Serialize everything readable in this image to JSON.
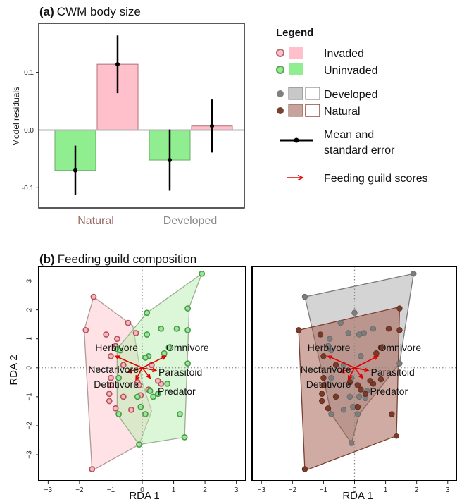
{
  "colors": {
    "invaded_fill": "#ffc0cb",
    "invaded_edge": "#b07070",
    "uninvaded_fill": "#90ee90",
    "uninvaded_edge": "#5aa05a",
    "developed_fill": "#a8a8a8",
    "developed_edge": "#777777",
    "natural_fill": "#a0604f",
    "natural_edge": "#7a4030",
    "natural_label": "#9e6b66",
    "developed_label": "#8a8a8a",
    "arrow": "#e00000"
  },
  "panel_a": {
    "label": "(a)",
    "title": "CWM body size",
    "ylabel": "Model residuals",
    "ylim": [
      -0.135,
      0.185
    ],
    "yticks": [
      {
        "value": -0.1,
        "label": "-0.1"
      },
      {
        "value": 0.0,
        "label": "0.0"
      },
      {
        "value": 0.1,
        "label": "0.1"
      }
    ],
    "groups": [
      "Natural",
      "Developed"
    ]
  },
  "legend": {
    "title": "Legend",
    "invaded": "Invaded",
    "uninvaded": "Uninvaded",
    "developed": "Developed",
    "natural": "Natural",
    "mean_line1": "Mean and",
    "mean_line2": "standard error",
    "feeding": "Feeding guild scores"
  },
  "panel_b": {
    "label": "(b)",
    "title": "Feeding guild composition",
    "xlabel": "RDA 1",
    "ylabel": "RDA 2",
    "xlim": [
      -3.3,
      3.3
    ],
    "ylim": [
      -3.9,
      3.5
    ],
    "xticks": [
      -3,
      -2,
      -1,
      0,
      1,
      2,
      3
    ],
    "yticks": [
      -3,
      -2,
      -1,
      0,
      1,
      2,
      3
    ],
    "guild_labels": {
      "herbivore": "Herbivore",
      "omnivore": "Omnivore",
      "nectarivore": "Nectarivore",
      "parasitoid": "Parasitoid",
      "detritivore": "Detritivore",
      "predator": "Predator"
    }
  },
  "chart_data": [
    {
      "type": "bar",
      "title": "CWM body size",
      "ylabel": "Model residuals",
      "ylim": [
        -0.135,
        0.185
      ],
      "categories": [
        "Natural",
        "Developed"
      ],
      "series": [
        {
          "name": "Uninvaded",
          "values": [
            -0.07,
            -0.052
          ],
          "error_low": [
            -0.113,
            -0.105
          ],
          "error_high": [
            -0.027,
            0.001
          ],
          "means": [
            -0.07,
            -0.052
          ]
        },
        {
          "name": "Invaded",
          "values": [
            0.114,
            0.007
          ],
          "error_low": [
            0.064,
            -0.039
          ],
          "error_high": [
            0.164,
            0.053
          ],
          "means": [
            0.114,
            0.007
          ]
        }
      ]
    },
    {
      "type": "scatter",
      "title": "Feeding guild composition",
      "subpanel": "invasion",
      "xlabel": "RDA 1",
      "ylabel": "RDA 2",
      "xlim": [
        -3.3,
        3.3
      ],
      "ylim": [
        -3.9,
        3.5
      ],
      "series": [
        {
          "name": "Invaded",
          "points": [
            [
              -1.6,
              -3.5
            ],
            [
              -1.8,
              1.3
            ],
            [
              -1.55,
              2.45
            ],
            [
              -1.15,
              1.15
            ],
            [
              -0.8,
              1.0
            ],
            [
              -0.85,
              0.75
            ],
            [
              -0.45,
              1.55
            ],
            [
              -0.2,
              1.2
            ],
            [
              -1.0,
              0.4
            ],
            [
              -0.6,
              0.1
            ],
            [
              -1.0,
              -0.35
            ],
            [
              -1.0,
              -0.6
            ],
            [
              -1.05,
              -0.9
            ],
            [
              -1.05,
              -1.15
            ],
            [
              -0.85,
              -1.4
            ],
            [
              -0.6,
              -1.0
            ],
            [
              -0.15,
              -0.5
            ],
            [
              -0.35,
              -1.45
            ],
            [
              -0.05,
              -0.95
            ],
            [
              0.2,
              -0.75
            ],
            [
              0.6,
              -0.55
            ],
            [
              0.5,
              -0.45
            ],
            [
              -0.1,
              -0.6
            ],
            [
              0.3,
              0.1
            ]
          ]
        },
        {
          "name": "Uninvaded",
          "points": [
            [
              1.9,
              3.25
            ],
            [
              1.45,
              2.05
            ],
            [
              1.45,
              1.3
            ],
            [
              1.1,
              1.35
            ],
            [
              0.6,
              1.35
            ],
            [
              0.15,
              1.9
            ],
            [
              0.15,
              1.15
            ],
            [
              0.85,
              0.7
            ],
            [
              0.7,
              0.5
            ],
            [
              0.2,
              0.4
            ],
            [
              0.1,
              0.35
            ],
            [
              -0.8,
              0.65
            ],
            [
              -0.75,
              -0.35
            ],
            [
              -0.7,
              0.6
            ],
            [
              1.45,
              0.15
            ],
            [
              0.25,
              -0.8
            ],
            [
              0.5,
              -0.9
            ],
            [
              0.35,
              -1.0
            ],
            [
              0.8,
              -0.55
            ],
            [
              -0.15,
              -1.0
            ],
            [
              -0.05,
              -1.35
            ],
            [
              0.1,
              -1.6
            ],
            [
              -0.75,
              -1.6
            ],
            [
              1.2,
              -1.6
            ],
            [
              -0.1,
              -2.65
            ],
            [
              1.35,
              -2.4
            ]
          ]
        }
      ],
      "hulls": {
        "Invaded": [
          [
            -1.55,
            2.45
          ],
          [
            -0.3,
            1.45
          ],
          [
            0.0,
            -0.5
          ],
          [
            0.3,
            -1.5
          ],
          [
            -0.1,
            -2.65
          ],
          [
            -1.6,
            -3.55
          ],
          [
            -1.85,
            1.3
          ]
        ],
        "Uninvaded": [
          [
            1.9,
            3.25
          ],
          [
            1.5,
            2.1
          ],
          [
            1.35,
            -2.4
          ],
          [
            -0.1,
            -2.65
          ],
          [
            -0.8,
            -1.6
          ],
          [
            -0.8,
            0.65
          ],
          [
            0.15,
            1.9
          ]
        ]
      },
      "arrows": [
        {
          "name": "Herbivore",
          "x": -0.85,
          "y": 0.4
        },
        {
          "name": "Omnivore",
          "x": 0.75,
          "y": 0.4
        },
        {
          "name": "Nectarivore",
          "x": -0.45,
          "y": -0.15
        },
        {
          "name": "Parasitoid",
          "x": 0.45,
          "y": -0.1
        },
        {
          "name": "Detritivore",
          "x": -0.2,
          "y": -0.4
        },
        {
          "name": "Predator",
          "x": 0.25,
          "y": -0.35
        }
      ]
    },
    {
      "type": "scatter",
      "title": "Feeding guild composition",
      "subpanel": "development",
      "xlabel": "RDA 1",
      "xlim": [
        -3.3,
        3.3
      ],
      "ylim": [
        -3.9,
        3.5
      ],
      "series": [
        {
          "name": "Developed",
          "points": [
            [
              1.9,
              3.25
            ],
            [
              -1.6,
              2.45
            ],
            [
              0.0,
              1.9
            ],
            [
              -0.45,
              1.55
            ],
            [
              -0.2,
              1.2
            ],
            [
              0.3,
              1.2
            ],
            [
              -0.85,
              0.75
            ],
            [
              -0.8,
              1.0
            ],
            [
              -0.75,
              0.6
            ],
            [
              0.2,
              0.4
            ],
            [
              0.6,
              1.35
            ],
            [
              0.15,
              1.15
            ],
            [
              1.45,
              0.15
            ],
            [
              -0.35,
              0.1
            ],
            [
              -0.1,
              -0.35
            ],
            [
              0.4,
              -0.8
            ],
            [
              0.15,
              -1.0
            ],
            [
              -0.35,
              -1.45
            ],
            [
              -0.75,
              -1.6
            ],
            [
              0.1,
              -1.6
            ],
            [
              -0.05,
              -1.35
            ],
            [
              -0.1,
              -2.6
            ],
            [
              -0.15,
              -1.0
            ],
            [
              0.35,
              -1.05
            ],
            [
              -0.75,
              -0.35
            ]
          ]
        },
        {
          "name": "Natural",
          "points": [
            [
              -1.6,
              -3.5
            ],
            [
              -1.8,
              1.3
            ],
            [
              -1.1,
              1.15
            ],
            [
              1.45,
              2.05
            ],
            [
              1.45,
              1.3
            ],
            [
              1.1,
              1.35
            ],
            [
              0.85,
              0.7
            ],
            [
              0.7,
              0.5
            ],
            [
              -1.0,
              0.4
            ],
            [
              -0.6,
              0.1
            ],
            [
              -1.0,
              -0.35
            ],
            [
              -1.0,
              -0.6
            ],
            [
              -1.05,
              -0.9
            ],
            [
              -1.05,
              -1.15
            ],
            [
              -0.85,
              -1.4
            ],
            [
              -0.6,
              -1.0
            ],
            [
              -0.15,
              -0.5
            ],
            [
              0.2,
              -0.75
            ],
            [
              0.6,
              -0.55
            ],
            [
              0.5,
              -0.45
            ],
            [
              0.1,
              -0.6
            ],
            [
              1.2,
              -1.6
            ],
            [
              1.35,
              -2.35
            ],
            [
              0.1,
              -1.35
            ],
            [
              0.35,
              -0.9
            ],
            [
              0.85,
              -0.4
            ]
          ]
        }
      ],
      "hulls": {
        "Developed": [
          [
            -1.6,
            2.45
          ],
          [
            1.9,
            3.25
          ],
          [
            1.45,
            0.15
          ],
          [
            0.15,
            -1.6
          ],
          [
            -0.1,
            -2.6
          ],
          [
            -0.75,
            -1.6
          ],
          [
            -1.0,
            -0.35
          ]
        ],
        "Natural": [
          [
            -1.8,
            1.3
          ],
          [
            1.45,
            2.1
          ],
          [
            1.35,
            -2.35
          ],
          [
            -1.6,
            -3.55
          ]
        ]
      },
      "arrows": [
        {
          "name": "Herbivore",
          "x": -0.85,
          "y": 0.4
        },
        {
          "name": "Omnivore",
          "x": 0.75,
          "y": 0.4
        },
        {
          "name": "Nectarivore",
          "x": -0.45,
          "y": -0.15
        },
        {
          "name": "Parasitoid",
          "x": 0.45,
          "y": -0.1
        },
        {
          "name": "Detritivore",
          "x": -0.2,
          "y": -0.4
        },
        {
          "name": "Predator",
          "x": 0.25,
          "y": -0.35
        }
      ]
    }
  ]
}
